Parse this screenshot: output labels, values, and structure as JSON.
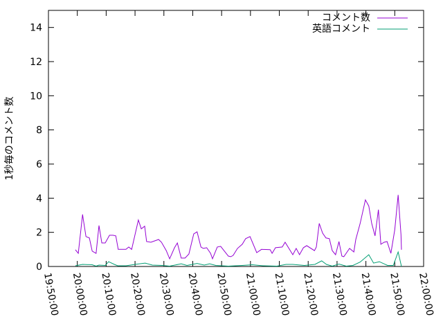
{
  "chart_data": {
    "type": "line",
    "title": "",
    "xlabel": "",
    "ylabel": "1秒毎のコメント数",
    "xlim": [
      "19:50:00",
      "22:00:00"
    ],
    "ylim": [
      0,
      15
    ],
    "x_ticks": [
      "19:50:00",
      "20:00:00",
      "20:10:00",
      "20:20:00",
      "20:30:00",
      "20:40:00",
      "20:50:00",
      "21:00:00",
      "21:10:00",
      "21:20:00",
      "21:30:00",
      "21:40:00",
      "21:50:00",
      "22:00:00"
    ],
    "y_ticks": [
      "0",
      "2",
      "4",
      "6",
      "8",
      "10",
      "12",
      "14"
    ],
    "grid": false,
    "legend_position": "top-right",
    "series": [
      {
        "name": "コメント数",
        "color": "#9400d3",
        "points": [
          [
            "19:59:20",
            0.98
          ],
          [
            "20:00:20",
            0.77
          ],
          [
            "20:01:50",
            3.05
          ],
          [
            "20:02:00",
            2.85
          ],
          [
            "20:03:00",
            1.75
          ],
          [
            "20:04:10",
            1.67
          ],
          [
            "20:05:10",
            0.9
          ],
          [
            "20:06:30",
            0.77
          ],
          [
            "20:07:30",
            2.4
          ],
          [
            "20:08:30",
            1.38
          ],
          [
            "20:09:40",
            1.38
          ],
          [
            "20:11:10",
            1.83
          ],
          [
            "20:12:20",
            1.83
          ],
          [
            "20:13:20",
            1.79
          ],
          [
            "20:14:10",
            1.0
          ],
          [
            "20:16:50",
            1.0
          ],
          [
            "20:17:50",
            1.14
          ],
          [
            "20:18:50",
            1.0
          ],
          [
            "20:21:10",
            2.72
          ],
          [
            "20:22:10",
            2.2
          ],
          [
            "20:23:20",
            2.36
          ],
          [
            "20:24:00",
            1.46
          ],
          [
            "20:25:30",
            1.42
          ],
          [
            "20:28:10",
            1.58
          ],
          [
            "20:29:10",
            1.42
          ],
          [
            "20:30:50",
            0.93
          ],
          [
            "20:32:00",
            0.45
          ],
          [
            "20:33:40",
            1.1
          ],
          [
            "20:34:40",
            1.38
          ],
          [
            "20:36:00",
            0.49
          ],
          [
            "20:37:20",
            0.49
          ],
          [
            "20:38:40",
            0.73
          ],
          [
            "20:40:20",
            1.91
          ],
          [
            "20:41:30",
            2.03
          ],
          [
            "20:42:50",
            1.14
          ],
          [
            "20:43:40",
            1.06
          ],
          [
            "20:44:50",
            1.1
          ],
          [
            "20:46:10",
            0.77
          ],
          [
            "20:46:50",
            0.45
          ],
          [
            "20:48:30",
            1.14
          ],
          [
            "20:49:40",
            1.18
          ],
          [
            "20:50:50",
            0.93
          ],
          [
            "20:52:20",
            0.61
          ],
          [
            "20:53:10",
            0.57
          ],
          [
            "20:54:00",
            0.65
          ],
          [
            "20:55:30",
            1.06
          ],
          [
            "20:57:10",
            1.3
          ],
          [
            "20:58:20",
            1.63
          ],
          [
            "20:59:50",
            1.75
          ],
          [
            "21:02:10",
            0.81
          ],
          [
            "21:03:50",
            1.0
          ],
          [
            "21:06:50",
            0.98
          ],
          [
            "21:07:30",
            0.77
          ],
          [
            "21:08:40",
            1.1
          ],
          [
            "21:11:00",
            1.14
          ],
          [
            "21:12:00",
            1.42
          ],
          [
            "21:14:40",
            0.69
          ],
          [
            "21:15:50",
            1.06
          ],
          [
            "21:17:00",
            0.69
          ],
          [
            "21:18:20",
            1.1
          ],
          [
            "21:19:30",
            1.22
          ],
          [
            "21:22:10",
            0.93
          ],
          [
            "21:22:50",
            1.14
          ],
          [
            "21:23:50",
            2.52
          ],
          [
            "21:25:00",
            1.95
          ],
          [
            "21:26:10",
            1.67
          ],
          [
            "21:27:20",
            1.63
          ],
          [
            "21:28:20",
            0.93
          ],
          [
            "21:29:30",
            0.69
          ],
          [
            "21:30:40",
            1.46
          ],
          [
            "21:31:40",
            0.61
          ],
          [
            "21:32:20",
            0.57
          ],
          [
            "21:34:20",
            1.06
          ],
          [
            "21:35:50",
            0.85
          ],
          [
            "21:36:30",
            1.58
          ],
          [
            "21:38:00",
            2.52
          ],
          [
            "21:39:50",
            3.9
          ],
          [
            "21:41:00",
            3.54
          ],
          [
            "21:42:00",
            2.52
          ],
          [
            "21:43:10",
            1.79
          ],
          [
            "21:44:20",
            3.33
          ],
          [
            "21:45:10",
            1.3
          ],
          [
            "21:46:20",
            1.42
          ],
          [
            "21:47:20",
            1.46
          ],
          [
            "21:48:40",
            0.77
          ],
          [
            "21:50:00",
            2.15
          ],
          [
            "21:51:10",
            4.19
          ],
          [
            "21:52:10",
            1.87
          ],
          [
            "21:52:20",
            0.98
          ]
        ]
      },
      {
        "name": "英語コメント",
        "color": "#009e73",
        "points": [
          [
            "19:59:20",
            0.04
          ],
          [
            "20:01:50",
            0.12
          ],
          [
            "20:05:10",
            0.1
          ],
          [
            "20:06:30",
            0.02
          ],
          [
            "20:07:30",
            0.08
          ],
          [
            "20:09:40",
            0.06
          ],
          [
            "20:10:50",
            0.28
          ],
          [
            "20:12:50",
            0.12
          ],
          [
            "20:14:00",
            0.04
          ],
          [
            "20:16:50",
            0.04
          ],
          [
            "20:20:00",
            0.12
          ],
          [
            "20:23:30",
            0.2
          ],
          [
            "20:26:00",
            0.08
          ],
          [
            "20:29:30",
            0.06
          ],
          [
            "20:32:00",
            0.02
          ],
          [
            "20:36:00",
            0.16
          ],
          [
            "20:38:00",
            0.06
          ],
          [
            "20:41:30",
            0.18
          ],
          [
            "20:44:00",
            0.08
          ],
          [
            "20:45:50",
            0.16
          ],
          [
            "20:48:00",
            0.06
          ],
          [
            "20:52:20",
            0.02
          ],
          [
            "20:57:10",
            0.06
          ],
          [
            "21:00:40",
            0.1
          ],
          [
            "21:04:20",
            0.04
          ],
          [
            "21:09:10",
            0.02
          ],
          [
            "21:12:20",
            0.12
          ],
          [
            "21:14:40",
            0.12
          ],
          [
            "21:18:40",
            0.06
          ],
          [
            "21:22:20",
            0.12
          ],
          [
            "21:24:40",
            0.33
          ],
          [
            "21:26:20",
            0.12
          ],
          [
            "21:28:20",
            0.02
          ],
          [
            "21:30:40",
            0.14
          ],
          [
            "21:33:10",
            0.02
          ],
          [
            "21:35:30",
            0.06
          ],
          [
            "21:38:00",
            0.26
          ],
          [
            "21:41:00",
            0.69
          ],
          [
            "21:42:40",
            0.2
          ],
          [
            "21:44:40",
            0.28
          ],
          [
            "21:47:30",
            0.06
          ],
          [
            "21:49:30",
            0.06
          ],
          [
            "21:51:10",
            0.85
          ],
          [
            "21:52:20",
            0.0
          ]
        ]
      }
    ]
  }
}
